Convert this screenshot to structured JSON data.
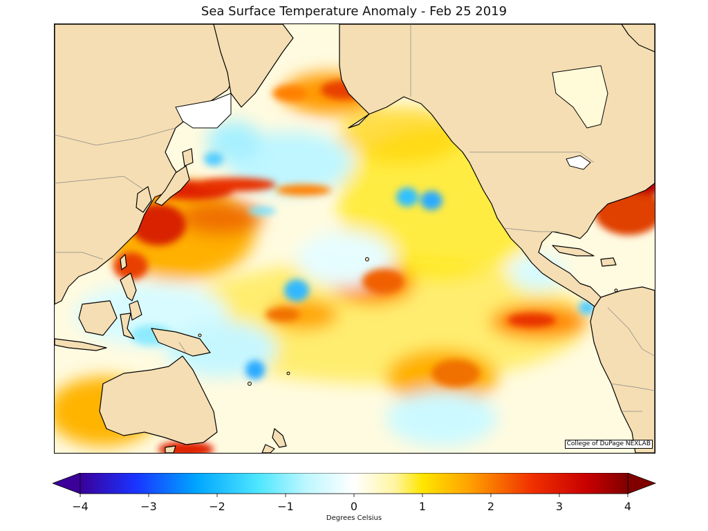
{
  "title": "Sea Surface Temperature Anomaly - Feb 25 2019",
  "credit": "College of DuPage NEXLAB",
  "colorbar": {
    "label": "Degrees Celsius",
    "min": -4,
    "max": 4,
    "extend": "both",
    "ticks": [
      {
        "value": -4,
        "label": "−4"
      },
      {
        "value": -3,
        "label": "−3"
      },
      {
        "value": -2,
        "label": "−2"
      },
      {
        "value": -1,
        "label": "−1"
      },
      {
        "value": 0,
        "label": "0"
      },
      {
        "value": 1,
        "label": "1"
      },
      {
        "value": 2,
        "label": "2"
      },
      {
        "value": 3,
        "label": "3"
      },
      {
        "value": 4,
        "label": "4"
      }
    ],
    "color_stops": [
      {
        "value": -4,
        "color": "#3a0099"
      },
      {
        "value": -3.2,
        "color": "#1a33ff"
      },
      {
        "value": -2.3,
        "color": "#00a6ff"
      },
      {
        "value": -1.4,
        "color": "#4ee6ff"
      },
      {
        "value": -0.7,
        "color": "#bdf7ff"
      },
      {
        "value": 0,
        "color": "#ffffff"
      },
      {
        "value": 0.6,
        "color": "#fff5a0"
      },
      {
        "value": 1.0,
        "color": "#ffe600"
      },
      {
        "value": 1.7,
        "color": "#ffa000"
      },
      {
        "value": 2.6,
        "color": "#f03000"
      },
      {
        "value": 3.4,
        "color": "#c80000"
      },
      {
        "value": 4,
        "color": "#800000"
      }
    ]
  },
  "colors": {
    "land": "#f5deb3",
    "coast": "#000000",
    "border": "#888888",
    "ocean_neutral": "#ffffff"
  }
}
